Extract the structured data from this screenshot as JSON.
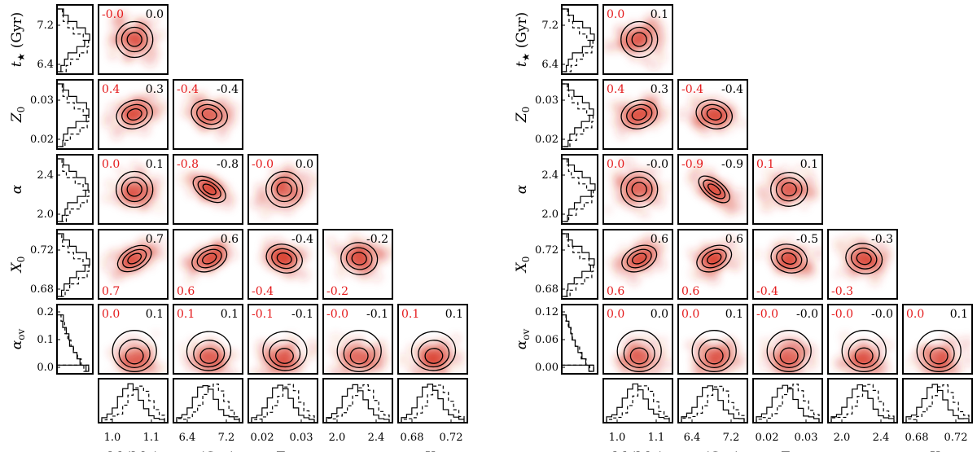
{
  "chart_data": [
    {
      "type": "corner",
      "name": "left",
      "parameters": [
        "M (M☉)",
        "t★ (Gyr)",
        "Z0",
        "α",
        "X0",
        "αov"
      ],
      "x_axis_labels": [
        {
          "base": "M",
          "unit": " (M",
          "sub": "☉",
          "tail": ")"
        },
        {
          "base": "t",
          "sub": "★",
          "tail": " (Gyr)"
        },
        {
          "base": "Z",
          "sub": "0",
          "tail": ""
        },
        {
          "base": "α",
          "sub": "",
          "tail": ""
        },
        {
          "base": "X",
          "sub": "0",
          "tail": ""
        }
      ],
      "y_axis_labels": [
        {
          "base": "t",
          "sub": "★",
          "tail": " (Gyr)"
        },
        {
          "base": "Z",
          "sub": "0",
          "tail": ""
        },
        {
          "base": "α",
          "sub": "",
          "tail": ""
        },
        {
          "base": "X",
          "sub": "0",
          "tail": ""
        },
        {
          "base": "α",
          "sub": "ov",
          "tail": ""
        }
      ],
      "x_ticks": [
        [
          "1.0",
          "1.1"
        ],
        [
          "6.4",
          "7.2"
        ],
        [
          "0.02",
          "0.03"
        ],
        [
          "2.0",
          "2.4"
        ],
        [
          "0.68",
          "0.72"
        ]
      ],
      "y_ticks": [
        [
          "7.2",
          "6.4"
        ],
        [
          "0.03",
          "0.02"
        ],
        [
          "2.4",
          "2.0"
        ],
        [
          "0.72",
          "0.68"
        ],
        [
          "0.2",
          "0.1",
          "0.0"
        ]
      ],
      "x_ranges": [
        [
          0.98,
          1.16
        ],
        [
          6.2,
          7.6
        ],
        [
          0.017,
          0.032
        ],
        [
          1.85,
          2.5
        ],
        [
          0.66,
          0.76
        ]
      ],
      "y_ranges": [
        [
          6.2,
          7.6
        ],
        [
          0.017,
          0.032
        ],
        [
          1.85,
          2.5
        ],
        [
          0.66,
          0.76
        ],
        [
          0.0,
          0.22
        ]
      ],
      "correlations": [
        {
          "row": 0,
          "col": 0,
          "red": "-0.0",
          "black": "0.0",
          "red_pos": "top"
        },
        {
          "row": 1,
          "col": 0,
          "red": "0.4",
          "black": "0.3",
          "red_pos": "top"
        },
        {
          "row": 1,
          "col": 1,
          "red": "-0.4",
          "black": "-0.4",
          "red_pos": "top"
        },
        {
          "row": 2,
          "col": 0,
          "red": "0.0",
          "black": "0.1",
          "red_pos": "top"
        },
        {
          "row": 2,
          "col": 1,
          "red": "-0.8",
          "black": "-0.8",
          "red_pos": "top"
        },
        {
          "row": 2,
          "col": 2,
          "red": "-0.0",
          "black": "0.0",
          "red_pos": "top"
        },
        {
          "row": 3,
          "col": 0,
          "red": "0.7",
          "black": "0.7",
          "red_pos": "bottom"
        },
        {
          "row": 3,
          "col": 1,
          "red": "0.6",
          "black": "0.6",
          "red_pos": "bottom"
        },
        {
          "row": 3,
          "col": 2,
          "red": "-0.4",
          "black": "-0.4",
          "red_pos": "bottom"
        },
        {
          "row": 3,
          "col": 3,
          "red": "-0.2",
          "black": "-0.2",
          "red_pos": "bottom"
        },
        {
          "row": 4,
          "col": 0,
          "red": "0.0",
          "black": "0.1",
          "red_pos": "top"
        },
        {
          "row": 4,
          "col": 1,
          "red": "0.1",
          "black": "0.1",
          "red_pos": "top"
        },
        {
          "row": 4,
          "col": 2,
          "red": "-0.1",
          "black": "-0.1",
          "red_pos": "top"
        },
        {
          "row": 4,
          "col": 3,
          "red": "-0.0",
          "black": "-0.1",
          "red_pos": "top"
        },
        {
          "row": 4,
          "col": 4,
          "red": "0.1",
          "black": "0.1",
          "red_pos": "top"
        }
      ],
      "red_color": "#e41a1c",
      "heat_color": "#d7301f",
      "contour_color": "#000000"
    },
    {
      "type": "corner",
      "name": "right",
      "parameters": [
        "M (M☉)",
        "t★ (Gyr)",
        "Z0",
        "α",
        "X0",
        "αov"
      ],
      "x_axis_labels": [
        {
          "base": "M",
          "unit": " (M",
          "sub": "☉",
          "tail": ")"
        },
        {
          "base": "t",
          "sub": "★",
          "tail": " (Gyr)"
        },
        {
          "base": "Z",
          "sub": "0",
          "tail": ""
        },
        {
          "base": "α",
          "sub": "",
          "tail": ""
        },
        {
          "base": "X",
          "sub": "0",
          "tail": ""
        }
      ],
      "y_axis_labels": [
        {
          "base": "t",
          "sub": "★",
          "tail": " (Gyr)"
        },
        {
          "base": "Z",
          "sub": "0",
          "tail": ""
        },
        {
          "base": "α",
          "sub": "",
          "tail": ""
        },
        {
          "base": "X",
          "sub": "0",
          "tail": ""
        },
        {
          "base": "α",
          "sub": "ov",
          "tail": ""
        }
      ],
      "x_ticks": [
        [
          "1.0",
          "1.1"
        ],
        [
          "6.4",
          "7.2"
        ],
        [
          "0.02",
          "0.03"
        ],
        [
          "2.0",
          "2.4"
        ],
        [
          "0.68",
          "0.72"
        ]
      ],
      "y_ticks": [
        [
          "7.2",
          "6.4"
        ],
        [
          "0.03",
          "0.02"
        ],
        [
          "2.4",
          "2.0"
        ],
        [
          "0.72",
          "0.68"
        ],
        [
          "0.12",
          "0.06",
          "0.00"
        ]
      ],
      "x_ranges": [
        [
          0.98,
          1.16
        ],
        [
          6.2,
          7.6
        ],
        [
          0.017,
          0.032
        ],
        [
          1.85,
          2.5
        ],
        [
          0.66,
          0.76
        ]
      ],
      "y_ranges": [
        [
          6.2,
          7.6
        ],
        [
          0.017,
          0.032
        ],
        [
          1.85,
          2.5
        ],
        [
          0.66,
          0.76
        ],
        [
          0.0,
          0.13
        ]
      ],
      "correlations": [
        {
          "row": 0,
          "col": 0,
          "red": "0.0",
          "black": "0.1",
          "red_pos": "top"
        },
        {
          "row": 1,
          "col": 0,
          "red": "0.4",
          "black": "0.3",
          "red_pos": "top"
        },
        {
          "row": 1,
          "col": 1,
          "red": "-0.4",
          "black": "-0.4",
          "red_pos": "top"
        },
        {
          "row": 2,
          "col": 0,
          "red": "0.0",
          "black": "-0.0",
          "red_pos": "top"
        },
        {
          "row": 2,
          "col": 1,
          "red": "-0.9",
          "black": "-0.9",
          "red_pos": "top"
        },
        {
          "row": 2,
          "col": 2,
          "red": "0.1",
          "black": "0.1",
          "red_pos": "top"
        },
        {
          "row": 3,
          "col": 0,
          "red": "0.6",
          "black": "0.6",
          "red_pos": "bottom"
        },
        {
          "row": 3,
          "col": 1,
          "red": "0.6",
          "black": "0.6",
          "red_pos": "bottom"
        },
        {
          "row": 3,
          "col": 2,
          "red": "-0.4",
          "black": "-0.5",
          "red_pos": "bottom"
        },
        {
          "row": 3,
          "col": 3,
          "red": "-0.3",
          "black": "-0.3",
          "red_pos": "bottom"
        },
        {
          "row": 4,
          "col": 0,
          "red": "0.0",
          "black": "0.0",
          "red_pos": "top"
        },
        {
          "row": 4,
          "col": 1,
          "red": "0.0",
          "black": "0.1",
          "red_pos": "top"
        },
        {
          "row": 4,
          "col": 2,
          "red": "-0.0",
          "black": "-0.0",
          "red_pos": "top"
        },
        {
          "row": 4,
          "col": 3,
          "red": "-0.0",
          "black": "-0.0",
          "red_pos": "top"
        },
        {
          "row": 4,
          "col": 4,
          "red": "0.0",
          "black": "0.1",
          "red_pos": "top"
        }
      ],
      "red_color": "#e41a1c",
      "heat_color": "#d7301f",
      "contour_color": "#000000"
    }
  ]
}
